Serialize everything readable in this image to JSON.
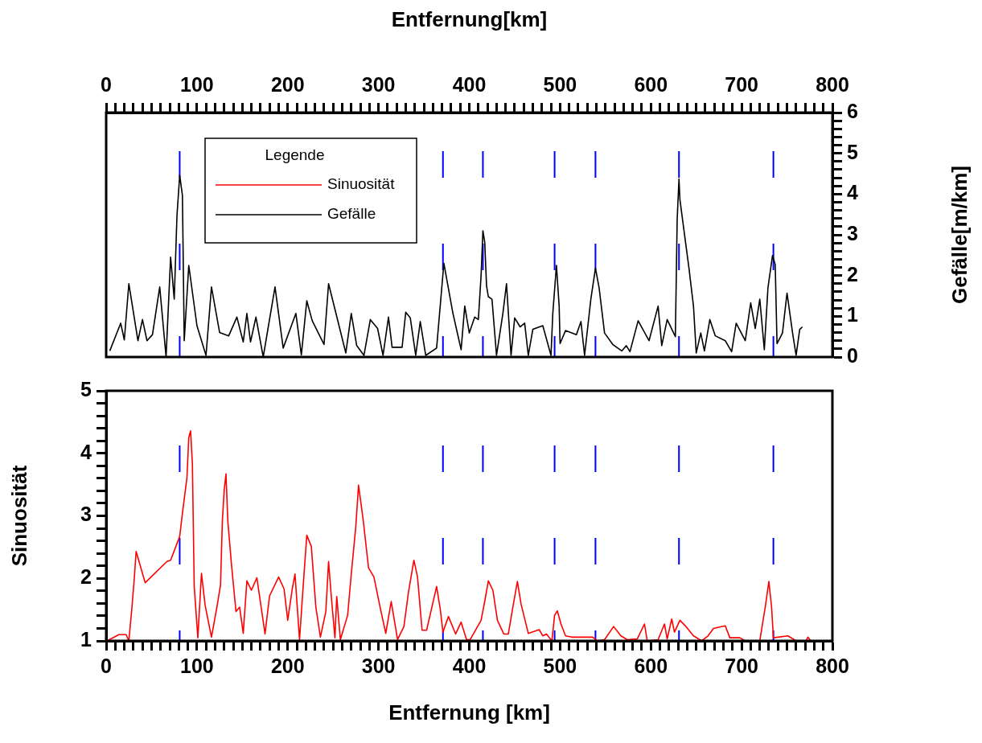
{
  "chart_data": [
    {
      "type": "line",
      "xlabel": "Entfernung[km]",
      "ylabel": "Gefälle[m/km]",
      "legend": "top left",
      "legend_title": "Legende",
      "marker": "none",
      "line_style": "solid",
      "grid": false,
      "xlim": [
        0,
        800
      ],
      "xticks": [
        0,
        {
          "value": 10,
          "label": null
        },
        {
          "value": 20,
          "label": null
        },
        {
          "value": 30,
          "label": null
        },
        {
          "value": 40,
          "label": null
        },
        {
          "value": 50,
          "label": null
        },
        {
          "value": 60,
          "label": null
        },
        {
          "value": 70,
          "label": null
        },
        {
          "value": 80,
          "label": null
        },
        {
          "value": 90,
          "label": null
        },
        100,
        {
          "value": 110,
          "label": null
        },
        {
          "value": 120,
          "label": null
        },
        {
          "value": 130,
          "label": null
        },
        {
          "value": 140,
          "label": null
        },
        {
          "value": 150,
          "label": null
        },
        {
          "value": 160,
          "label": null
        },
        {
          "value": 170,
          "label": null
        },
        {
          "value": 180,
          "label": null
        },
        {
          "value": 190,
          "label": null
        },
        200,
        {
          "value": 210,
          "label": null
        },
        {
          "value": 220,
          "label": null
        },
        {
          "value": 230,
          "label": null
        },
        {
          "value": 240,
          "label": null
        },
        {
          "value": 250,
          "label": null
        },
        {
          "value": 260,
          "label": null
        },
        {
          "value": 270,
          "label": null
        },
        {
          "value": 280,
          "label": null
        },
        {
          "value": 290,
          "label": null
        },
        300,
        {
          "value": 310,
          "label": null
        },
        {
          "value": 320,
          "label": null
        },
        {
          "value": 330,
          "label": null
        },
        {
          "value": 340,
          "label": null
        },
        {
          "value": 350,
          "label": null
        },
        {
          "value": 360,
          "label": null
        },
        {
          "value": 370,
          "label": null
        },
        {
          "value": 380,
          "label": null
        },
        {
          "value": 390,
          "label": null
        },
        400,
        {
          "value": 410,
          "label": null
        },
        {
          "value": 420,
          "label": null
        },
        {
          "value": 430,
          "label": null
        },
        {
          "value": 440,
          "label": null
        },
        {
          "value": 450,
          "label": null
        },
        {
          "value": 460,
          "label": null
        },
        {
          "value": 470,
          "label": null
        },
        {
          "value": 480,
          "label": null
        },
        {
          "value": 490,
          "label": null
        },
        500,
        {
          "value": 510,
          "label": null
        },
        {
          "value": 520,
          "label": null
        },
        {
          "value": 530,
          "label": null
        },
        {
          "value": 540,
          "label": null
        },
        {
          "value": 550,
          "label": null
        },
        {
          "value": 560,
          "label": null
        },
        {
          "value": 570,
          "label": null
        },
        {
          "value": 580,
          "label": null
        },
        {
          "value": 590,
          "label": null
        },
        600,
        {
          "value": 610,
          "label": null
        },
        {
          "value": 620,
          "label": null
        },
        {
          "value": 630,
          "label": null
        },
        {
          "value": 640,
          "label": null
        },
        {
          "value": 650,
          "label": null
        },
        {
          "value": 660,
          "label": null
        },
        {
          "value": 670,
          "label": null
        },
        {
          "value": 680,
          "label": null
        },
        {
          "value": 690,
          "label": null
        },
        700,
        {
          "value": 710,
          "label": null
        },
        {
          "value": 720,
          "label": null
        },
        {
          "value": 730,
          "label": null
        },
        {
          "value": 740,
          "label": null
        },
        {
          "value": 750,
          "label": null
        },
        {
          "value": 760,
          "label": null
        },
        {
          "value": 770,
          "label": null
        },
        {
          "value": 780,
          "label": null
        },
        {
          "value": 790,
          "label": null
        },
        800
      ],
      "ylim": [
        0,
        6
      ],
      "yticks": [
        0,
        {
          "value": 0.2,
          "label": null
        },
        {
          "value": 0.4,
          "label": null
        },
        {
          "value": 0.6,
          "label": null
        },
        {
          "value": 0.8,
          "label": null
        },
        1,
        {
          "value": 1.2,
          "label": null
        },
        {
          "value": 1.4,
          "label": null
        },
        {
          "value": 1.6,
          "label": null
        },
        {
          "value": 1.8,
          "label": null
        },
        2,
        {
          "value": 2.2,
          "label": null
        },
        {
          "value": 2.4,
          "label": null
        },
        {
          "value": 2.6,
          "label": null
        },
        {
          "value": 2.8,
          "label": null
        },
        3,
        {
          "value": 3.2,
          "label": null
        },
        {
          "value": 3.4,
          "label": null
        },
        {
          "value": 3.6,
          "label": null
        },
        {
          "value": 3.8,
          "label": null
        },
        4,
        {
          "value": 4.2,
          "label": null
        },
        {
          "value": 4.4,
          "label": null
        },
        {
          "value": 4.6,
          "label": null
        },
        {
          "value": 4.8,
          "label": null
        },
        5,
        {
          "value": 5.2,
          "label": null
        },
        {
          "value": 5.4,
          "label": null
        },
        {
          "value": 5.6,
          "label": null
        },
        {
          "value": 5.8,
          "label": null
        },
        6
      ],
      "ref_lines": [
        {
          "axis": "x",
          "value": 81,
          "color": "#0000ff",
          "line_style": "dashed"
        },
        {
          "axis": "x",
          "value": 371,
          "color": "#0000ff",
          "line_style": "dashed"
        },
        {
          "axis": "x",
          "value": 415,
          "color": "#0000ff",
          "line_style": "dashed"
        },
        {
          "axis": "x",
          "value": 494,
          "color": "#0000ff",
          "line_style": "dashed"
        },
        {
          "axis": "x",
          "value": 539,
          "color": "#0000ff",
          "line_style": "dashed"
        },
        {
          "axis": "x",
          "value": 631,
          "color": "#0000ff",
          "line_style": "dashed"
        },
        {
          "axis": "x",
          "value": 735,
          "color": "#0000ff",
          "line_style": "dashed"
        }
      ],
      "series": [
        {
          "name": "Gefälle",
          "color": "#000000",
          "x": [
            4,
            16,
            20,
            25,
            35,
            40,
            45,
            51,
            59,
            66,
            71,
            75,
            78,
            81,
            84,
            86,
            91,
            100,
            110,
            116,
            125,
            135,
            144,
            151,
            155,
            159,
            165,
            173,
            186,
            195,
            209,
            215,
            221,
            227,
            240,
            245,
            264,
            270,
            276,
            284,
            291,
            299,
            305,
            311,
            315,
            326,
            330,
            335,
            341,
            346,
            352,
            364,
            372,
            382,
            391,
            395,
            400,
            406,
            410,
            413,
            415,
            417,
            419,
            421,
            425,
            430,
            437,
            441,
            446,
            450,
            456,
            461,
            465,
            470,
            481,
            490,
            492,
            496,
            499,
            500,
            506,
            518,
            523,
            527,
            534,
            539,
            543,
            549,
            558,
            568,
            573,
            577,
            586,
            598,
            608,
            612,
            618,
            627,
            629,
            631,
            632,
            636,
            642,
            647,
            650,
            655,
            659,
            665,
            671,
            682,
            689,
            694,
            704,
            710,
            715,
            720,
            725,
            729,
            734,
            737,
            739,
            745,
            750,
            756,
            760,
            764,
            767
          ],
          "values": [
            0.15,
            0.83,
            0.42,
            1.8,
            0.4,
            0.92,
            0.4,
            0.55,
            1.72,
            0,
            2.45,
            1.42,
            3.47,
            4.46,
            3.97,
            0.4,
            2.25,
            0.77,
            0.04,
            1.72,
            0.6,
            0.52,
            0.98,
            0.37,
            1.07,
            0.37,
            0.98,
            0,
            1.72,
            0.22,
            1.07,
            0.05,
            1.38,
            0.89,
            0.31,
            1.8,
            0.1,
            1.07,
            0.28,
            0.04,
            0.92,
            0.7,
            0.04,
            0.98,
            0.24,
            0.24,
            1.1,
            0.96,
            0.04,
            0.87,
            0.04,
            0.22,
            2.3,
            1.07,
            0.18,
            1.25,
            0.59,
            0.98,
            0.92,
            2.0,
            3.1,
            2.82,
            1.75,
            1.48,
            1.42,
            0.04,
            1.07,
            1.8,
            0.04,
            0.96,
            0.74,
            0.83,
            0.04,
            0.68,
            0.77,
            0.04,
            1.07,
            2.25,
            1.25,
            0.33,
            0.65,
            0.55,
            0.87,
            0.04,
            1.44,
            2.18,
            1.7,
            0.59,
            0.31,
            0.15,
            0.28,
            0.13,
            0.89,
            0.4,
            1.25,
            0.28,
            0.92,
            0.5,
            3.38,
            4.37,
            3.87,
            3.19,
            2.18,
            1.24,
            0.1,
            0.59,
            0.15,
            0.92,
            0.52,
            0.4,
            0.13,
            0.83,
            0.4,
            1.33,
            0.7,
            1.42,
            0.18,
            1.7,
            2.49,
            2.27,
            0.33,
            0.59,
            1.57,
            0.61,
            0.04,
            0.68,
            0.74
          ]
        }
      ]
    },
    {
      "type": "line",
      "xlabel": "Entfernung [km]",
      "ylabel": "Sinuosität",
      "marker": "none",
      "line_style": "solid",
      "grid": false,
      "xlim": [
        0,
        800
      ],
      "xticks": [
        0,
        {
          "value": 10,
          "label": null
        },
        {
          "value": 20,
          "label": null
        },
        {
          "value": 30,
          "label": null
        },
        {
          "value": 40,
          "label": null
        },
        {
          "value": 50,
          "label": null
        },
        {
          "value": 60,
          "label": null
        },
        {
          "value": 70,
          "label": null
        },
        {
          "value": 80,
          "label": null
        },
        {
          "value": 90,
          "label": null
        },
        100,
        {
          "value": 110,
          "label": null
        },
        {
          "value": 120,
          "label": null
        },
        {
          "value": 130,
          "label": null
        },
        {
          "value": 140,
          "label": null
        },
        {
          "value": 150,
          "label": null
        },
        {
          "value": 160,
          "label": null
        },
        {
          "value": 170,
          "label": null
        },
        {
          "value": 180,
          "label": null
        },
        {
          "value": 190,
          "label": null
        },
        200,
        {
          "value": 210,
          "label": null
        },
        {
          "value": 220,
          "label": null
        },
        {
          "value": 230,
          "label": null
        },
        {
          "value": 240,
          "label": null
        },
        {
          "value": 250,
          "label": null
        },
        {
          "value": 260,
          "label": null
        },
        {
          "value": 270,
          "label": null
        },
        {
          "value": 280,
          "label": null
        },
        {
          "value": 290,
          "label": null
        },
        300,
        {
          "value": 310,
          "label": null
        },
        {
          "value": 320,
          "label": null
        },
        {
          "value": 330,
          "label": null
        },
        {
          "value": 340,
          "label": null
        },
        {
          "value": 350,
          "label": null
        },
        {
          "value": 360,
          "label": null
        },
        {
          "value": 370,
          "label": null
        },
        {
          "value": 380,
          "label": null
        },
        {
          "value": 390,
          "label": null
        },
        400,
        {
          "value": 410,
          "label": null
        },
        {
          "value": 420,
          "label": null
        },
        {
          "value": 430,
          "label": null
        },
        {
          "value": 440,
          "label": null
        },
        {
          "value": 450,
          "label": null
        },
        {
          "value": 460,
          "label": null
        },
        {
          "value": 470,
          "label": null
        },
        {
          "value": 480,
          "label": null
        },
        {
          "value": 490,
          "label": null
        },
        500,
        {
          "value": 510,
          "label": null
        },
        {
          "value": 520,
          "label": null
        },
        {
          "value": 530,
          "label": null
        },
        {
          "value": 540,
          "label": null
        },
        {
          "value": 550,
          "label": null
        },
        {
          "value": 560,
          "label": null
        },
        {
          "value": 570,
          "label": null
        },
        {
          "value": 580,
          "label": null
        },
        {
          "value": 590,
          "label": null
        },
        600,
        {
          "value": 610,
          "label": null
        },
        {
          "value": 620,
          "label": null
        },
        {
          "value": 630,
          "label": null
        },
        {
          "value": 640,
          "label": null
        },
        {
          "value": 650,
          "label": null
        },
        {
          "value": 660,
          "label": null
        },
        {
          "value": 670,
          "label": null
        },
        {
          "value": 680,
          "label": null
        },
        {
          "value": 690,
          "label": null
        },
        700,
        {
          "value": 710,
          "label": null
        },
        {
          "value": 720,
          "label": null
        },
        {
          "value": 730,
          "label": null
        },
        {
          "value": 740,
          "label": null
        },
        {
          "value": 750,
          "label": null
        },
        {
          "value": 760,
          "label": null
        },
        {
          "value": 770,
          "label": null
        },
        {
          "value": 780,
          "label": null
        },
        {
          "value": 790,
          "label": null
        },
        800
      ],
      "ylim": [
        1,
        5
      ],
      "yticks": [
        1,
        {
          "value": 1.2,
          "label": null
        },
        {
          "value": 1.4,
          "label": null
        },
        {
          "value": 1.6,
          "label": null
        },
        {
          "value": 1.8,
          "label": null
        },
        2,
        {
          "value": 2.2,
          "label": null
        },
        {
          "value": 2.4,
          "label": null
        },
        {
          "value": 2.6,
          "label": null
        },
        {
          "value": 2.8,
          "label": null
        },
        3,
        {
          "value": 3.2,
          "label": null
        },
        {
          "value": 3.4,
          "label": null
        },
        {
          "value": 3.6,
          "label": null
        },
        {
          "value": 3.8,
          "label": null
        },
        4,
        {
          "value": 4.2,
          "label": null
        },
        {
          "value": 4.4,
          "label": null
        },
        {
          "value": 4.6,
          "label": null
        },
        {
          "value": 4.8,
          "label": null
        },
        5
      ],
      "ref_lines": [
        {
          "axis": "x",
          "value": 81,
          "color": "#0000ff",
          "line_style": "dashed"
        },
        {
          "axis": "x",
          "value": 371,
          "color": "#0000ff",
          "line_style": "dashed"
        },
        {
          "axis": "x",
          "value": 415,
          "color": "#0000ff",
          "line_style": "dashed"
        },
        {
          "axis": "x",
          "value": 494,
          "color": "#0000ff",
          "line_style": "dashed"
        },
        {
          "axis": "x",
          "value": 539,
          "color": "#0000ff",
          "line_style": "dashed"
        },
        {
          "axis": "x",
          "value": 631,
          "color": "#0000ff",
          "line_style": "dashed"
        },
        {
          "axis": "x",
          "value": 735,
          "color": "#0000ff",
          "line_style": "dashed"
        }
      ],
      "series": [
        {
          "name": "Sinuosität",
          "color": "#ff0000",
          "x": [
            1,
            14,
            22,
            25,
            28,
            31,
            33,
            43,
            67,
            71,
            81,
            84,
            89,
            91,
            93,
            95,
            97,
            101,
            105,
            109,
            116,
            122,
            126,
            128,
            130,
            132,
            134,
            138,
            143,
            147,
            151,
            155,
            160,
            166,
            175,
            180,
            190,
            196,
            200,
            205,
            208,
            213,
            217,
            221,
            226,
            231,
            236,
            242,
            245,
            248,
            252,
            254,
            258,
            266,
            270,
            275,
            278,
            283,
            289,
            295,
            301,
            308,
            314,
            321,
            328,
            333,
            339,
            343,
            348,
            353,
            364,
            368,
            371,
            377,
            385,
            391,
            397,
            401,
            413,
            417,
            421,
            426,
            431,
            438,
            443,
            448,
            453,
            457,
            465,
            477,
            481,
            485,
            491,
            494,
            497,
            501,
            506,
            513,
            536,
            541,
            549,
            559,
            567,
            574,
            585,
            593,
            596,
            608,
            615,
            618,
            623,
            626,
            632,
            638,
            647,
            656,
            663,
            669,
            682,
            687,
            698,
            704,
            720,
            726,
            730,
            733,
            735,
            751,
            760,
            771,
            773,
            776
          ],
          "values": [
            1.0,
            1.1,
            1.1,
            1.0,
            1.47,
            2.0,
            2.43,
            1.93,
            2.27,
            2.29,
            2.67,
            3.04,
            3.61,
            4.25,
            4.36,
            3.83,
            1.87,
            1.05,
            2.08,
            1.57,
            1.06,
            1.54,
            1.9,
            2.92,
            3.41,
            3.67,
            2.92,
            2.23,
            1.47,
            1.54,
            1.12,
            1.96,
            1.81,
            2.01,
            1.11,
            1.72,
            2.02,
            1.83,
            1.33,
            1.83,
            2.07,
            1.02,
            1.87,
            2.69,
            2.51,
            1.54,
            1.06,
            1.47,
            2.27,
            1.71,
            1.05,
            1.71,
            1.02,
            1.41,
            2.07,
            2.83,
            3.49,
            2.95,
            2.17,
            2.02,
            1.59,
            1.12,
            1.63,
            1.02,
            1.23,
            1.78,
            2.29,
            2.02,
            1.17,
            1.17,
            1.87,
            1.51,
            1.14,
            1.39,
            1.11,
            1.3,
            1.02,
            1.02,
            1.33,
            1.63,
            1.96,
            1.81,
            1.33,
            1.11,
            1.11,
            1.54,
            1.95,
            1.59,
            1.12,
            1.18,
            1.08,
            1.11,
            1.0,
            1.41,
            1.48,
            1.27,
            1.08,
            1.06,
            1.06,
            1.0,
            1.02,
            1.23,
            1.08,
            1.02,
            1.03,
            1.27,
            1.0,
            1.02,
            1.27,
            1.03,
            1.35,
            1.14,
            1.33,
            1.24,
            1.08,
            1.0,
            1.08,
            1.2,
            1.24,
            1.05,
            1.05,
            1.0,
            1.0,
            1.54,
            1.95,
            1.54,
            1.05,
            1.08,
            1.0,
            1.0,
            1.06,
            1.0
          ]
        }
      ]
    }
  ]
}
